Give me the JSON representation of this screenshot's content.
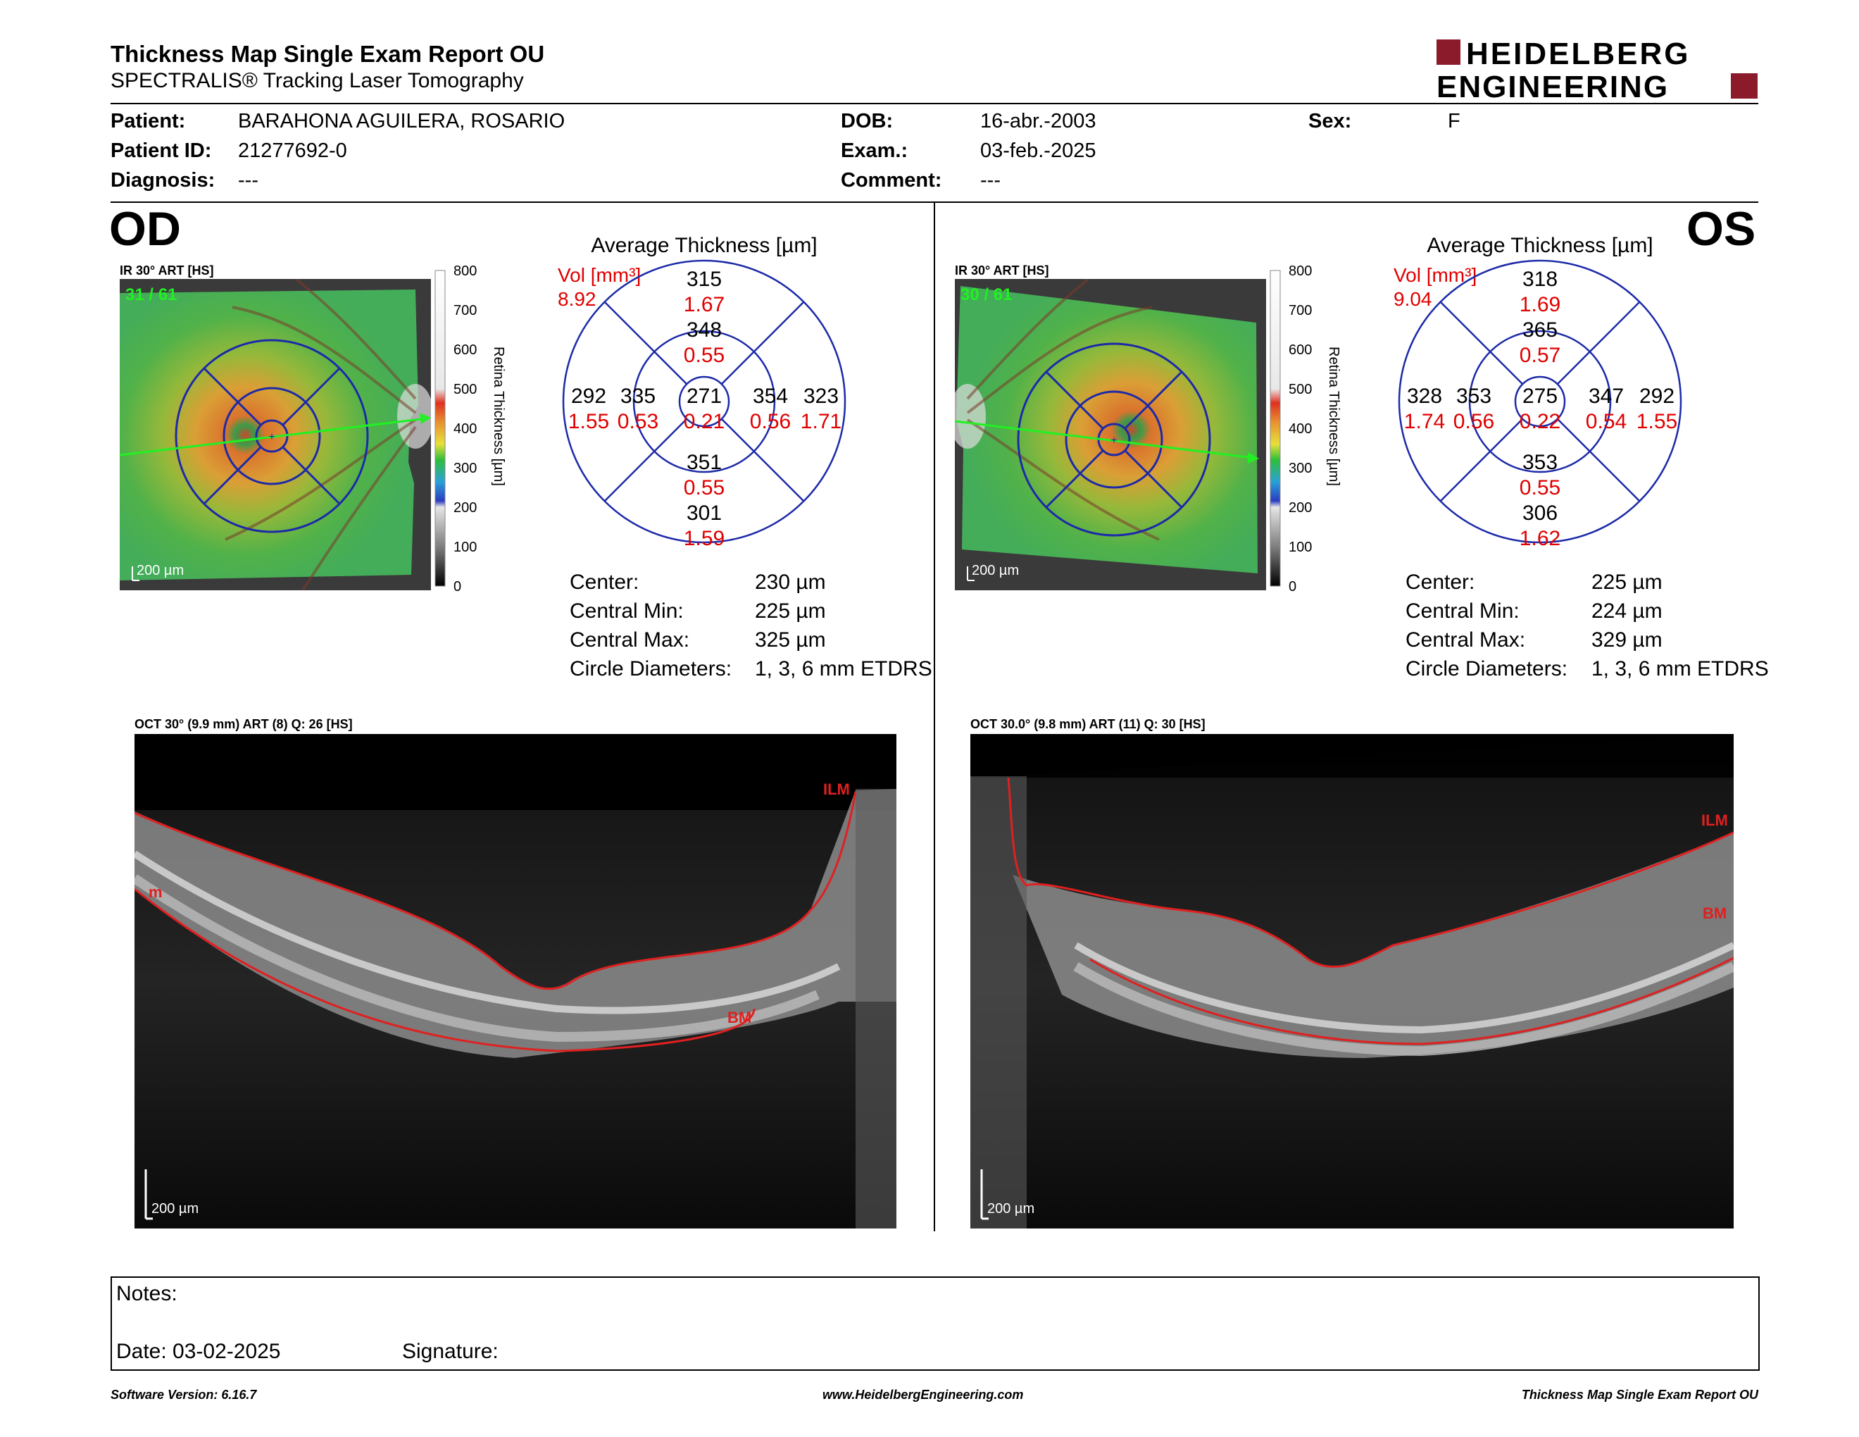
{
  "header": {
    "title": "Thickness Map Single Exam Report OU",
    "subtitle": "SPECTRALIS® Tracking Laser Tomography",
    "logo_line1": "HEIDELBERG",
    "logo_line2": "ENGINEERING",
    "logo_color": "#8b1a2b"
  },
  "patient": {
    "patient_label": "Patient:",
    "patient_value": "BARAHONA AGUILERA, ROSARIO",
    "id_label": "Patient ID:",
    "id_value": "21277692-0",
    "diagnosis_label": "Diagnosis:",
    "diagnosis_value": "---",
    "dob_label": "DOB:",
    "dob_value": "16-abr.-2003",
    "exam_label": "Exam.:",
    "exam_value": "03-feb.-2025",
    "comment_label": "Comment:",
    "comment_value": "---",
    "sex_label": "Sex:",
    "sex_value": "F"
  },
  "scale": {
    "ticks": [
      "800",
      "700",
      "600",
      "500",
      "400",
      "300",
      "200",
      "100",
      "0"
    ],
    "label": "Retina Thickness [µm]"
  },
  "od": {
    "eye": "OD",
    "ir_label": "IR 30° ART [HS]",
    "counter": "31 / 61",
    "fundus_scale": "200 µm",
    "avg_title": "Average Thickness [µm]",
    "vol_label": "Vol [mm³]",
    "vol_value": "8.92",
    "sectors": {
      "outer_top": {
        "t": "315",
        "v": "1.67"
      },
      "inner_top": {
        "t": "348",
        "v": "0.55"
      },
      "outer_left": {
        "t": "292",
        "v": "1.55"
      },
      "inner_left": {
        "t": "335",
        "v": "0.53"
      },
      "center": {
        "t": "271",
        "v": "0.21"
      },
      "inner_right": {
        "t": "354",
        "v": "0.56"
      },
      "outer_right": {
        "t": "323",
        "v": "1.71"
      },
      "inner_bottom": {
        "t": "351",
        "v": "0.55"
      },
      "outer_bottom": {
        "t": "301",
        "v": "1.59"
      }
    },
    "stats": [
      {
        "label": "Center:",
        "value": "230 µm"
      },
      {
        "label": "Central Min:",
        "value": "225 µm"
      },
      {
        "label": "Central Max:",
        "value": "325 µm"
      },
      {
        "label": "Circle Diameters:",
        "value": "1, 3, 6 mm ETDRS"
      }
    ],
    "oct_label": "OCT 30° (9.9 mm) ART (8) Q: 26 [HS]",
    "ilm": "ILM",
    "bm": "BM",
    "edge_label": "m",
    "oct_scale": "200 µm"
  },
  "os": {
    "eye": "OS",
    "ir_label": "IR 30° ART [HS]",
    "counter": "30 / 61",
    "fundus_scale": "200 µm",
    "avg_title": "Average Thickness [µm]",
    "vol_label": "Vol [mm³]",
    "vol_value": "9.04",
    "sectors": {
      "outer_top": {
        "t": "318",
        "v": "1.69"
      },
      "inner_top": {
        "t": "365",
        "v": "0.57"
      },
      "outer_left": {
        "t": "328",
        "v": "1.74"
      },
      "inner_left": {
        "t": "353",
        "v": "0.56"
      },
      "center": {
        "t": "275",
        "v": "0.22"
      },
      "inner_right": {
        "t": "347",
        "v": "0.54"
      },
      "outer_right": {
        "t": "292",
        "v": "1.55"
      },
      "inner_bottom": {
        "t": "353",
        "v": "0.55"
      },
      "outer_bottom": {
        "t": "306",
        "v": "1.62"
      }
    },
    "stats": [
      {
        "label": "Center:",
        "value": "225 µm"
      },
      {
        "label": "Central Min:",
        "value": "224 µm"
      },
      {
        "label": "Central Max:",
        "value": "329 µm"
      },
      {
        "label": "Circle Diameters:",
        "value": "1, 3, 6 mm ETDRS"
      }
    ],
    "oct_label": "OCT 30.0° (9.8 mm) ART (11) Q: 30 [HS]",
    "ilm": "ILM",
    "bm": "BM",
    "oct_scale": "200 µm"
  },
  "notes": {
    "notes_label": "Notes:",
    "date_label": "Date: 03-02-2025",
    "signature_label": "Signature:"
  },
  "footer": {
    "left": "Software Version: 6.16.7",
    "center": "www.HeidelbergEngineering.com",
    "right": "Thickness Map Single Exam Report OU"
  }
}
